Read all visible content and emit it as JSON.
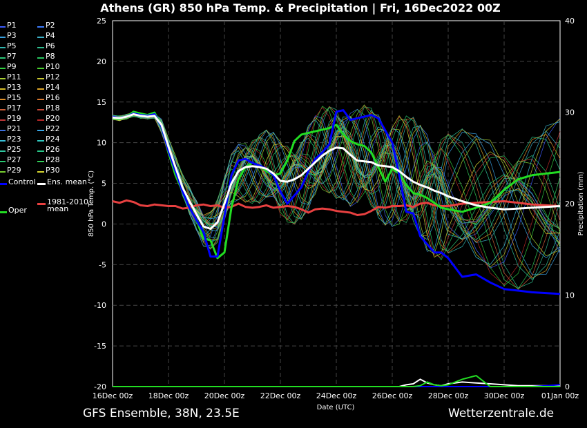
{
  "title": "Athens  (GR)  850 hPa Temp. & Precipitation | Fri, 16Dec2022 00Z",
  "footer": {
    "left": "GFS Ensemble, 38N, 23.5E",
    "right": "Wetterzentrale.de"
  },
  "legend": {
    "members": [
      {
        "label": "P1",
        "color": "#3c5cff"
      },
      {
        "label": "P2",
        "color": "#3c7cff"
      },
      {
        "label": "P3",
        "color": "#38a0e0"
      },
      {
        "label": "P4",
        "color": "#3cb0c8"
      },
      {
        "label": "P5",
        "color": "#30b8b0"
      },
      {
        "label": "P6",
        "color": "#30c090"
      },
      {
        "label": "P7",
        "color": "#2cc878"
      },
      {
        "label": "P8",
        "color": "#28c860"
      },
      {
        "label": "P9",
        "color": "#30d040"
      },
      {
        "label": "P10",
        "color": "#48d030"
      },
      {
        "label": "P11",
        "color": "#a8d030"
      },
      {
        "label": "P12",
        "color": "#c8c830"
      },
      {
        "label": "P13",
        "color": "#d8c028"
      },
      {
        "label": "P14",
        "color": "#e0a828"
      },
      {
        "label": "P15",
        "color": "#e09028"
      },
      {
        "label": "P16",
        "color": "#d87830"
      },
      {
        "label": "P17",
        "color": "#d06038"
      },
      {
        "label": "P18",
        "color": "#c84838"
      },
      {
        "label": "P19",
        "color": "#c03838"
      },
      {
        "label": "P20",
        "color": "#b82828"
      },
      {
        "label": "P21",
        "color": "#3c70e0"
      },
      {
        "label": "P22",
        "color": "#38a8e8"
      },
      {
        "label": "P23",
        "color": "#38c0d8"
      },
      {
        "label": "P24",
        "color": "#30c8c0"
      },
      {
        "label": "P25",
        "color": "#30c8a0"
      },
      {
        "label": "P26",
        "color": "#28c888"
      },
      {
        "label": "P27",
        "color": "#28c870"
      },
      {
        "label": "P28",
        "color": "#30d058"
      },
      {
        "label": "P29",
        "color": "#78d030"
      },
      {
        "label": "P30",
        "color": "#d8d830"
      }
    ],
    "control": {
      "label": "Control",
      "color": "#0000ff"
    },
    "ens_mean": {
      "label": "Ens. mean",
      "color": "#ffffff"
    },
    "clim": {
      "label": "1981-2010\nmean",
      "color": "#e84040"
    },
    "oper": {
      "label": "Oper",
      "color": "#22dd22"
    }
  },
  "chart_data": {
    "type": "line",
    "ylabel": "850 hPa Temp. (°C)",
    "y2label": "Precipitation (mm)",
    "xlabel": "Date (UTC)",
    "ylim": [
      -20,
      25
    ],
    "y2lim": [
      0,
      40
    ],
    "yticks": [
      -20,
      -15,
      -10,
      -5,
      0,
      5,
      10,
      15,
      20,
      25
    ],
    "y2ticks": [
      0,
      10,
      20,
      30,
      40
    ],
    "xlim_days": [
      0,
      16
    ],
    "xticks": [
      "16Dec 00z",
      "18Dec 00z",
      "20Dec 00z",
      "22Dec 00z",
      "24Dec 00z",
      "26Dec 00z",
      "28Dec 00z",
      "30Dec 00z",
      "01Jan 00z"
    ],
    "grid": true,
    "x_days": [
      0,
      0.25,
      0.5,
      0.75,
      1,
      1.25,
      1.5,
      1.75,
      2,
      2.25,
      2.5,
      2.75,
      3,
      3.25,
      3.5,
      3.75,
      4,
      4.25,
      4.5,
      4.75,
      5,
      5.25,
      5.5,
      5.75,
      6,
      6.25,
      6.5,
      6.75,
      7,
      7.25,
      7.5,
      7.75,
      8,
      8.25,
      8.5,
      8.75,
      9,
      9.25,
      9.5,
      9.75,
      10,
      10.25,
      10.5,
      10.75,
      11,
      11.25,
      11.5,
      11.75,
      12,
      12.5,
      13,
      13.5,
      14,
      14.5,
      15,
      15.5,
      16
    ],
    "series": [
      {
        "name": "Control",
        "values": [
          13.2,
          13.0,
          13.2,
          13.6,
          13.4,
          13.3,
          13.5,
          12.0,
          9.0,
          6.5,
          4.0,
          2.0,
          0.5,
          -1.0,
          -4.0,
          -4.0,
          1.0,
          6.0,
          7.8,
          8.0,
          7.5,
          7.2,
          6.8,
          6.0,
          4.0,
          2.5,
          3.5,
          4.5,
          6.5,
          8.0,
          8.8,
          9.8,
          13.8,
          14.0,
          12.8,
          13.0,
          13.2,
          13.4,
          13.0,
          11.5,
          10.0,
          6.0,
          1.5,
          1.3,
          -1.5,
          -2.5,
          -3.5,
          -3.5,
          -4.2,
          -6.5,
          -6.2,
          -7.2,
          -8.0,
          -8.2,
          -8.4,
          -8.5,
          -8.6
        ]
      },
      {
        "name": "Oper",
        "values": [
          13.0,
          12.9,
          13.2,
          13.8,
          13.6,
          13.4,
          13.7,
          12.0,
          8.8,
          6.0,
          4.0,
          2.0,
          0.5,
          -1.8,
          -2.0,
          -4.2,
          -3.5,
          2.0,
          5.5,
          7.0,
          7.5,
          7.2,
          6.5,
          6.0,
          6.2,
          7.8,
          10.2,
          11.0,
          11.2,
          11.4,
          11.6,
          11.8,
          12.2,
          11.0,
          10.2,
          9.8,
          9.6,
          8.8,
          7.0,
          5.2,
          6.8,
          6.2,
          4.8,
          3.8,
          3.6,
          3.2,
          2.6,
          2.0,
          1.8,
          1.5,
          2.0,
          2.6,
          4.2,
          5.5,
          6.0,
          6.2,
          6.4
        ]
      },
      {
        "name": "Ens. mean",
        "values": [
          13.1,
          13.0,
          13.2,
          13.5,
          13.3,
          13.2,
          13.3,
          12.2,
          9.5,
          7.0,
          4.5,
          2.8,
          1.2,
          -0.3,
          -0.6,
          0.2,
          2.5,
          5.0,
          6.5,
          7.0,
          7.1,
          7.0,
          6.8,
          6.2,
          5.3,
          5.2,
          5.5,
          6.0,
          6.8,
          7.6,
          8.4,
          9.0,
          9.4,
          9.3,
          8.5,
          7.8,
          7.7,
          7.6,
          7.2,
          7.1,
          7.0,
          6.5,
          5.8,
          5.2,
          4.8,
          4.5,
          4.1,
          3.8,
          3.4,
          2.8,
          2.3,
          2.0,
          1.8,
          1.9,
          2.0,
          2.1,
          2.2
        ]
      },
      {
        "name": "1981-2010 mean",
        "values": [
          2.8,
          2.6,
          2.9,
          2.7,
          2.3,
          2.2,
          2.4,
          2.3,
          2.2,
          2.2,
          1.9,
          2.0,
          2.3,
          2.4,
          2.2,
          2.3,
          2.0,
          2.1,
          2.5,
          2.1,
          2.0,
          2.1,
          2.3,
          2.0,
          2.1,
          2.2,
          2.1,
          1.8,
          1.4,
          1.8,
          1.9,
          1.8,
          1.6,
          1.5,
          1.4,
          1.1,
          1.2,
          1.6,
          2.1,
          2.0,
          2.2,
          2.2,
          2.3,
          2.1,
          2.5,
          2.6,
          2.3,
          2.2,
          2.2,
          2.5,
          2.6,
          2.7,
          2.8,
          2.6,
          2.4,
          2.3,
          2.2
        ]
      }
    ],
    "precip_oper": [
      0,
      0,
      0,
      0,
      0,
      0,
      0,
      0,
      0,
      0,
      0,
      0,
      0,
      0,
      0,
      0,
      0,
      0,
      0,
      0,
      0,
      0,
      0,
      0,
      0,
      0,
      0,
      0,
      0,
      0,
      0,
      0,
      0,
      0,
      0,
      0,
      0,
      0,
      0,
      0,
      0,
      0,
      0,
      0,
      0.1,
      0.5,
      0.2,
      0.1,
      0.2,
      0.8,
      1.2,
      0,
      0,
      0,
      0,
      0,
      0
    ],
    "precip_control": [
      0,
      0,
      0,
      0,
      0,
      0,
      0,
      0,
      0,
      0,
      0,
      0,
      0,
      0,
      0,
      0,
      0,
      0,
      0,
      0,
      0,
      0,
      0,
      0,
      0,
      0,
      0,
      0,
      0,
      0,
      0,
      0,
      0,
      0,
      0,
      0,
      0,
      0,
      0,
      0,
      0,
      0,
      0,
      0,
      0,
      0,
      0,
      0,
      0,
      0,
      0,
      0,
      0,
      0,
      0,
      0.1,
      0.2
    ],
    "precip_mean": [
      0,
      0,
      0,
      0,
      0,
      0,
      0,
      0,
      0,
      0,
      0,
      0,
      0,
      0,
      0,
      0,
      0,
      0,
      0,
      0,
      0,
      0,
      0,
      0,
      0,
      0,
      0,
      0,
      0,
      0,
      0,
      0,
      0,
      0,
      0,
      0,
      0,
      0,
      0,
      0,
      0,
      0,
      0.2,
      0.3,
      0.8,
      0.4,
      0.2,
      0.1,
      0.3,
      0.5,
      0.4,
      0.3,
      0.2,
      0.1,
      0.1,
      0.1,
      0.1
    ]
  }
}
